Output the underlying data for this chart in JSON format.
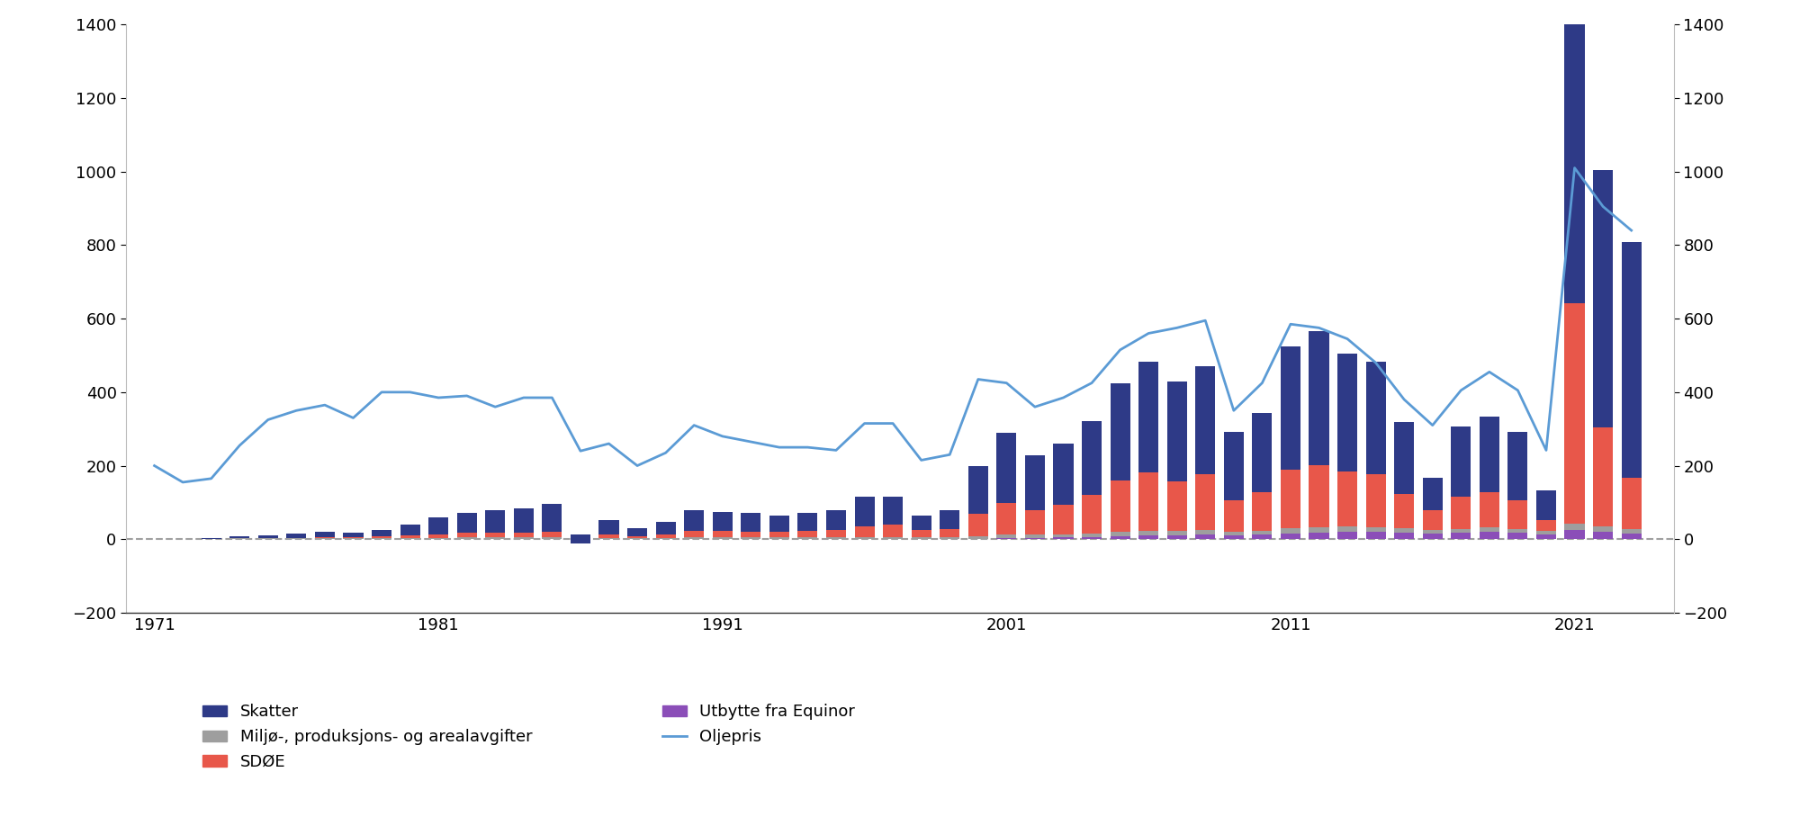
{
  "years": [
    1971,
    1972,
    1973,
    1974,
    1975,
    1976,
    1977,
    1978,
    1979,
    1980,
    1981,
    1982,
    1983,
    1984,
    1985,
    1986,
    1987,
    1988,
    1989,
    1990,
    1991,
    1992,
    1993,
    1994,
    1995,
    1996,
    1997,
    1998,
    1999,
    2000,
    2001,
    2002,
    2003,
    2004,
    2005,
    2006,
    2007,
    2008,
    2009,
    2010,
    2011,
    2012,
    2013,
    2014,
    2015,
    2016,
    2017,
    2018,
    2019,
    2020,
    2021,
    2022,
    2023
  ],
  "skatter": [
    0,
    0,
    2,
    5,
    8,
    12,
    15,
    14,
    18,
    30,
    45,
    55,
    60,
    65,
    75,
    25,
    40,
    20,
    35,
    55,
    50,
    50,
    45,
    50,
    55,
    80,
    75,
    40,
    50,
    130,
    190,
    150,
    165,
    200,
    265,
    300,
    270,
    295,
    185,
    215,
    335,
    365,
    320,
    305,
    195,
    90,
    190,
    205,
    185,
    80,
    1000,
    700,
    640
  ],
  "sdoe": [
    0,
    0,
    0,
    0,
    0,
    2,
    3,
    3,
    5,
    8,
    10,
    12,
    14,
    14,
    15,
    -15,
    8,
    5,
    8,
    18,
    18,
    16,
    15,
    16,
    18,
    30,
    35,
    18,
    22,
    60,
    85,
    65,
    80,
    105,
    140,
    160,
    135,
    150,
    85,
    105,
    160,
    170,
    150,
    145,
    95,
    52,
    88,
    96,
    78,
    30,
    600,
    270,
    140
  ],
  "miljo": [
    0,
    0,
    1,
    2,
    2,
    2,
    2,
    2,
    3,
    3,
    4,
    5,
    5,
    5,
    5,
    4,
    4,
    4,
    4,
    5,
    5,
    5,
    5,
    6,
    6,
    6,
    6,
    6,
    6,
    8,
    10,
    9,
    9,
    10,
    12,
    13,
    12,
    13,
    10,
    11,
    13,
    14,
    14,
    13,
    11,
    10,
    11,
    12,
    11,
    8,
    18,
    15,
    12
  ],
  "utbytte": [
    0,
    0,
    0,
    0,
    0,
    0,
    0,
    0,
    0,
    0,
    0,
    0,
    0,
    0,
    0,
    0,
    0,
    0,
    0,
    0,
    0,
    0,
    0,
    0,
    0,
    0,
    0,
    0,
    0,
    0,
    4,
    4,
    5,
    6,
    8,
    10,
    11,
    13,
    11,
    12,
    16,
    18,
    20,
    20,
    18,
    16,
    17,
    20,
    17,
    14,
    25,
    20,
    16
  ],
  "oljepris": [
    200,
    155,
    165,
    255,
    325,
    350,
    365,
    330,
    400,
    400,
    385,
    390,
    360,
    385,
    385,
    240,
    260,
    200,
    235,
    310,
    280,
    265,
    250,
    250,
    242,
    315,
    315,
    215,
    230,
    435,
    425,
    360,
    385,
    425,
    515,
    560,
    575,
    595,
    350,
    425,
    585,
    575,
    545,
    480,
    380,
    310,
    405,
    455,
    405,
    242,
    1010,
    905,
    840
  ],
  "bar_colors": {
    "skatter": "#2E3A87",
    "sdoe": "#E8574A",
    "miljo": "#9E9E9E",
    "utbytte": "#8B4EB8"
  },
  "line_color": "#5B9BD5",
  "dashed_line_color": "#A0A0A0",
  "ylim": [
    -200,
    1400
  ],
  "yticks": [
    -200,
    0,
    200,
    400,
    600,
    800,
    1000,
    1200,
    1400
  ],
  "legend_labels": {
    "skatter": "Skatter",
    "sdoe": "SDØE",
    "miljo": "Miljø-, produksjons- og arealavgifter",
    "utbytte": "Utbytte fra Equinor",
    "oljepris": "Oljepris"
  },
  "background_color": "#FFFFFF",
  "figsize": [
    20.0,
    9.08
  ],
  "dpi": 100
}
